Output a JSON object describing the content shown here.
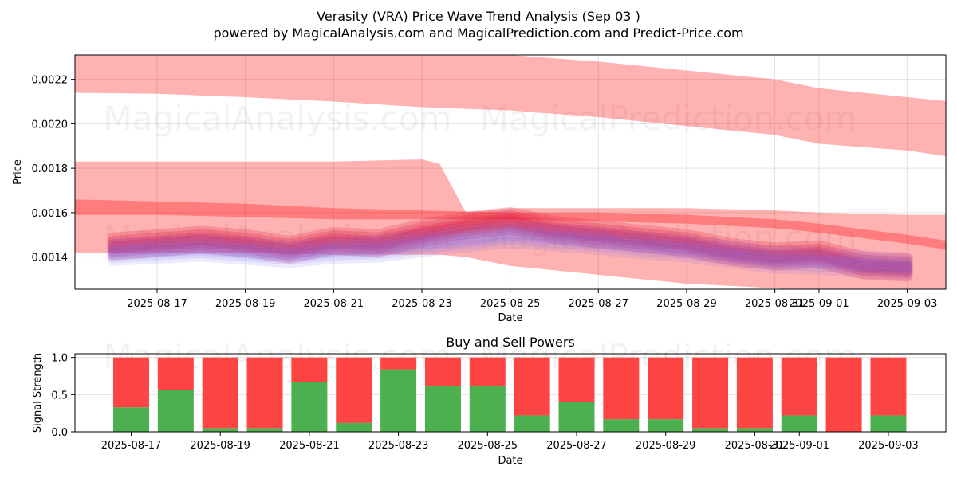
{
  "chart_data": [
    {
      "type": "area",
      "title": "Verasity (VRA) Price Wave Trend Analysis (Sep 03 )",
      "subtitle": "powered by MagicalAnalysis.com and MagicalPrediction.com and Predict-Price.com",
      "xlabel": "Date",
      "ylabel": "Price",
      "x_tick_labels": [
        "2025-08-17",
        "2025-08-19",
        "2025-08-21",
        "2025-08-23",
        "2025-08-25",
        "2025-08-27",
        "2025-08-29",
        "2025-08-31",
        "2025-09-01",
        "2025-09-03"
      ],
      "y_tick_labels": [
        "0.0014",
        "0.0016",
        "0.0018",
        "0.0020",
        "0.0022"
      ],
      "ylim": [
        0.001255,
        0.00231
      ],
      "grid": true,
      "watermarks": [
        "MagicalAnalysis.com",
        "MagicalPrediction.com"
      ],
      "colors": {
        "band": "#ff0000",
        "wave": "#dc143c",
        "alt_wave": "#7b68ee"
      },
      "bands": [
        {
          "name": "upper-trend-band",
          "x": [
            "2025-08-15",
            "2025-08-17",
            "2025-08-19",
            "2025-08-21",
            "2025-08-23",
            "2025-08-25",
            "2025-08-27",
            "2025-08-29",
            "2025-08-31",
            "2025-09-01",
            "2025-09-03",
            "2025-09-04"
          ],
          "lower": [
            0.00214,
            0.002135,
            0.00212,
            0.0021,
            0.002075,
            0.00206,
            0.00203,
            0.00199,
            0.00195,
            0.00191,
            0.00188,
            0.00185
          ],
          "upper": [
            0.00232,
            0.00232,
            0.00232,
            0.00232,
            0.00232,
            0.00231,
            0.00228,
            0.00224,
            0.0022,
            0.00216,
            0.00212,
            0.0021
          ]
        },
        {
          "name": "wide-reversal-band",
          "x": [
            "2025-08-15",
            "2025-08-17",
            "2025-08-19",
            "2025-08-21",
            "2025-08-23",
            "2025-08-23.4",
            "2025-08-24",
            "2025-08-25",
            "2025-08-27",
            "2025-08-29",
            "2025-08-31",
            "2025-09-01",
            "2025-09-03",
            "2025-09-04"
          ],
          "lower": [
            0.00142,
            0.00142,
            0.00142,
            0.00141,
            0.00141,
            0.00141,
            0.0014,
            0.00136,
            0.00132,
            0.00128,
            0.00126,
            0.00124,
            0.00122,
            0.0012
          ],
          "upper": [
            0.00183,
            0.00183,
            0.00183,
            0.00183,
            0.00184,
            0.00182,
            0.0016,
            0.00162,
            0.00162,
            0.00162,
            0.00161,
            0.0016,
            0.00159,
            0.00159
          ]
        },
        {
          "name": "mid-band",
          "x": [
            "2025-08-15",
            "2025-08-17",
            "2025-08-19",
            "2025-08-21",
            "2025-08-23",
            "2025-08-25",
            "2025-08-27",
            "2025-08-29",
            "2025-08-31",
            "2025-09-01",
            "2025-09-03",
            "2025-09-04"
          ],
          "lower": [
            0.00159,
            0.00159,
            0.00158,
            0.00157,
            0.00157,
            0.00157,
            0.00156,
            0.00155,
            0.00153,
            0.00151,
            0.00146,
            0.00143
          ],
          "upper": [
            0.00166,
            0.00165,
            0.00164,
            0.00162,
            0.00161,
            0.0016,
            0.0016,
            0.00159,
            0.00157,
            0.00155,
            0.0015,
            0.00147
          ]
        }
      ],
      "series": [
        {
          "name": "price-wave",
          "x": [
            "2025-08-16",
            "2025-08-17",
            "2025-08-18",
            "2025-08-19",
            "2025-08-20",
            "2025-08-21",
            "2025-08-22",
            "2025-08-23",
            "2025-08-24",
            "2025-08-25",
            "2025-08-26",
            "2025-08-27",
            "2025-08-28",
            "2025-08-29",
            "2025-08-30",
            "2025-08-31",
            "2025-09-01",
            "2025-09-02",
            "2025-09-03"
          ],
          "values": [
            0.001445,
            0.00146,
            0.001475,
            0.00146,
            0.00143,
            0.00147,
            0.00146,
            0.001505,
            0.00154,
            0.00156,
            0.00152,
            0.0015,
            0.00148,
            0.00146,
            0.00142,
            0.0014,
            0.00141,
            0.00136,
            0.00135
          ]
        },
        {
          "name": "secondary-wave",
          "x": [
            "2025-08-16",
            "2025-08-17",
            "2025-08-18",
            "2025-08-19",
            "2025-08-20",
            "2025-08-21",
            "2025-08-22",
            "2025-08-23",
            "2025-08-24",
            "2025-08-25",
            "2025-08-26",
            "2025-08-27",
            "2025-08-28",
            "2025-08-29",
            "2025-08-30",
            "2025-08-31",
            "2025-09-01",
            "2025-09-02",
            "2025-09-03"
          ],
          "values": [
            0.00142,
            0.00143,
            0.00144,
            0.001425,
            0.00141,
            0.00143,
            0.001435,
            0.00146,
            0.00148,
            0.0015,
            0.001485,
            0.00147,
            0.00145,
            0.001435,
            0.00141,
            0.001385,
            0.00138,
            0.001365,
            0.001355
          ]
        }
      ]
    },
    {
      "type": "bar",
      "title": "Buy and Sell Powers",
      "xlabel": "Date",
      "ylabel": "Signal Strength",
      "x_tick_labels": [
        "2025-08-17",
        "2025-08-19",
        "2025-08-21",
        "2025-08-23",
        "2025-08-25",
        "2025-08-27",
        "2025-08-29",
        "2025-08-31",
        "2025-09-01",
        "2025-09-03"
      ],
      "y_tick_labels": [
        "0.0",
        "0.5",
        "1.0"
      ],
      "ylim": [
        0,
        1.05
      ],
      "grid": true,
      "watermarks": [
        "MagicalAnalysis.com",
        "MagicalPrediction.com"
      ],
      "colors": {
        "buy": "#4caf50",
        "sell": "#ff4444"
      },
      "categories": [
        "2025-08-17",
        "2025-08-18",
        "2025-08-19",
        "2025-08-20",
        "2025-08-21",
        "2025-08-22",
        "2025-08-23",
        "2025-08-24",
        "2025-08-25",
        "2025-08-26",
        "2025-08-27",
        "2025-08-28",
        "2025-08-29",
        "2025-08-30",
        "2025-08-31",
        "2025-09-01",
        "2025-09-02",
        "2025-09-03"
      ],
      "series": [
        {
          "name": "Buy",
          "values": [
            0.33,
            0.56,
            0.05,
            0.05,
            0.67,
            0.12,
            0.84,
            0.61,
            0.61,
            0.22,
            0.4,
            0.17,
            0.17,
            0.05,
            0.05,
            0.22,
            0.0,
            0.22
          ]
        },
        {
          "name": "Sell",
          "values": [
            0.67,
            0.44,
            0.95,
            0.95,
            0.33,
            0.88,
            0.16,
            0.39,
            0.39,
            0.78,
            0.6,
            0.83,
            0.83,
            0.95,
            0.95,
            0.78,
            1.0,
            0.78
          ]
        }
      ]
    }
  ]
}
